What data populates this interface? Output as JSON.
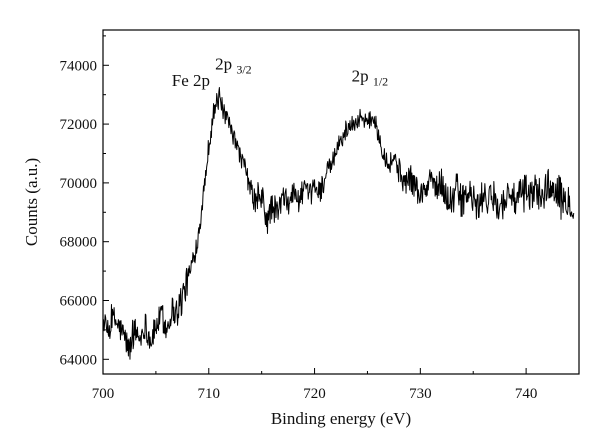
{
  "chart_data": {
    "type": "line",
    "xlabel": "Binding energy (eV)",
    "ylabel": "Counts (a.u.)",
    "xlim": [
      700,
      745
    ],
    "ylim": [
      63500,
      75200
    ],
    "xticks": [
      700,
      710,
      720,
      730,
      740
    ],
    "yticks": [
      64000,
      66000,
      68000,
      70000,
      72000,
      74000
    ],
    "ytick_labels": [
      "64000",
      "66000",
      "68000",
      "70000",
      "72000",
      "74000"
    ],
    "grid": false,
    "legend": "none",
    "line_color": "#000000",
    "annotations": [
      {
        "label": "Fe 2p",
        "x": 706.5,
        "y": 73300
      },
      {
        "label_main": "2p",
        "label_sub": "3/2",
        "x": 710.6,
        "y": 73850
      },
      {
        "label_main": "2p",
        "label_sub": "1/2",
        "x": 723.5,
        "y": 73450
      }
    ],
    "series": [
      {
        "x": [
          700.0,
          700.5,
          701.0,
          701.5,
          702.0,
          702.5,
          703.0,
          703.5,
          704.0,
          704.5,
          705.0,
          705.5,
          706.0,
          706.5,
          707.0,
          707.5,
          708.0,
          708.5,
          709.0,
          709.5,
          710.0,
          710.5,
          711.0,
          711.5,
          712.0,
          712.5,
          713.0,
          713.5,
          714.0,
          714.5,
          715.0,
          715.5,
          716.0,
          716.5,
          717.0,
          717.5,
          718.0,
          718.5,
          719.0,
          719.5,
          720.0,
          720.5,
          721.0,
          721.5,
          722.0,
          722.5,
          723.0,
          723.5,
          724.0,
          724.5,
          725.0,
          725.5,
          726.0,
          726.5,
          727.0,
          727.5,
          728.0,
          728.5,
          729.0,
          729.5,
          730.0,
          730.5,
          731.0,
          731.5,
          732.0,
          732.5,
          733.0,
          733.5,
          734.0,
          734.5,
          735.0,
          735.5,
          736.0,
          736.5,
          737.0,
          737.5,
          738.0,
          738.5,
          739.0,
          739.5,
          740.0,
          740.5,
          741.0,
          741.5,
          742.0,
          742.5,
          743.0,
          743.5,
          744.0,
          744.5
        ],
        "y": [
          65300,
          64900,
          65400,
          65100,
          64800,
          64300,
          65000,
          64700,
          65200,
          64600,
          65100,
          65500,
          65000,
          65700,
          65600,
          66100,
          66700,
          67300,
          68200,
          69600,
          71300,
          72500,
          72900,
          72300,
          71900,
          71400,
          70900,
          70400,
          69700,
          69300,
          69500,
          68700,
          69200,
          69000,
          69500,
          69300,
          69700,
          69400,
          69800,
          69500,
          69900,
          69700,
          70200,
          70500,
          71000,
          71400,
          71800,
          72000,
          72100,
          72300,
          72000,
          72300,
          71700,
          71100,
          70600,
          70900,
          70400,
          70000,
          70200,
          69900,
          69600,
          69700,
          70200,
          69800,
          70000,
          69500,
          69400,
          69800,
          69300,
          69700,
          69400,
          69100,
          69700,
          69300,
          69600,
          69100,
          69400,
          69800,
          69300,
          69600,
          69800,
          69500,
          69900,
          69400,
          70000,
          69700,
          69900,
          69300,
          69500,
          69100
        ],
        "noise": [
          300,
          400,
          450,
          450,
          450,
          450,
          450,
          450,
          450,
          450,
          450,
          450,
          450,
          500,
          550,
          600,
          500,
          400,
          350,
          300,
          350,
          400,
          350,
          300,
          300,
          300,
          300,
          350,
          400,
          500,
          550,
          550,
          500,
          450,
          450,
          400,
          400,
          400,
          400,
          400,
          400,
          400,
          400,
          400,
          350,
          300,
          300,
          300,
          300,
          300,
          300,
          300,
          350,
          350,
          350,
          400,
          450,
          450,
          450,
          450,
          450,
          500,
          500,
          500,
          500,
          500,
          550,
          600,
          600,
          550,
          550,
          550,
          550,
          550,
          550,
          550,
          550,
          550,
          550,
          550,
          550,
          550,
          600,
          600,
          550,
          550,
          550,
          550,
          550,
          550
        ]
      }
    ]
  }
}
